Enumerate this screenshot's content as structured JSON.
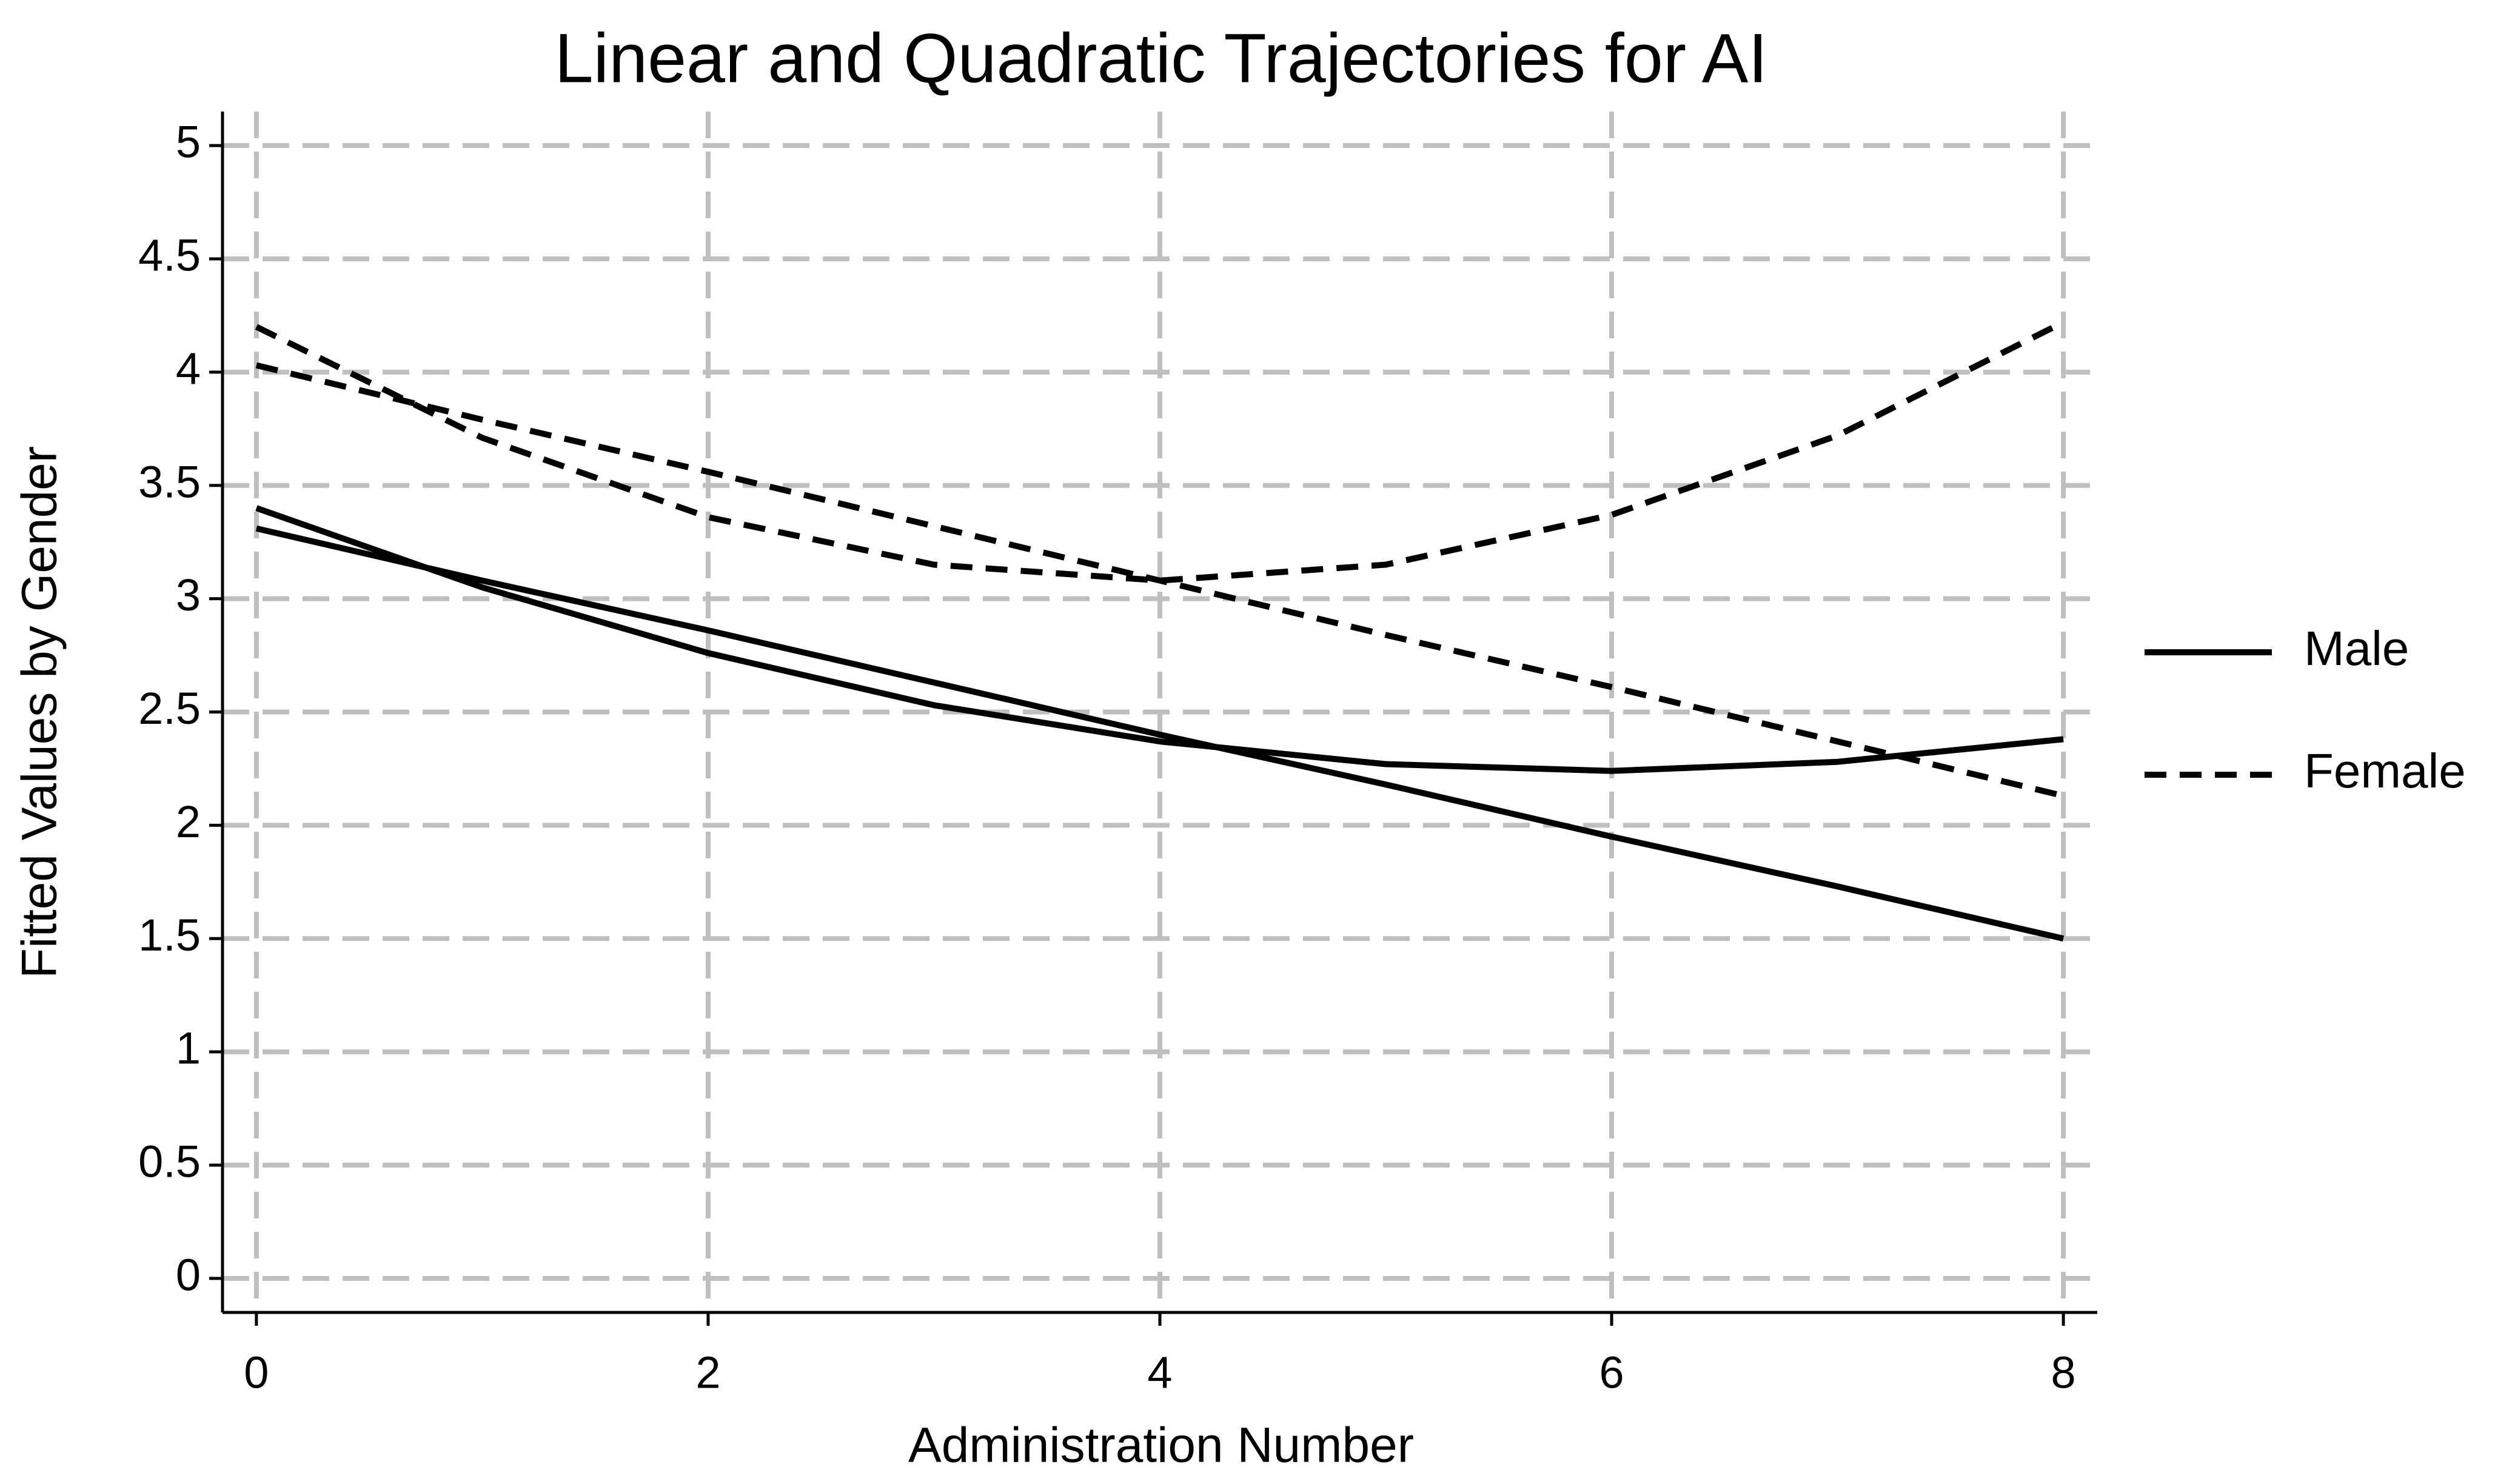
{
  "chart_data": {
    "type": "line",
    "title": "Linear and Quadratic Trajectories for AI",
    "x_label": "Administration Number",
    "y_label": "Fitted Values by Gender",
    "x": [
      0,
      1,
      2,
      3,
      4,
      5,
      6,
      7,
      8
    ],
    "series": [
      {
        "name": "Male",
        "color": "#000000",
        "dash": "solid",
        "linear": [
          3.31,
          3.08,
          2.86,
          2.63,
          2.4,
          2.18,
          1.95,
          1.73,
          1.5
        ],
        "quadratic": [
          3.4,
          3.05,
          2.76,
          2.53,
          2.37,
          2.27,
          2.24,
          2.28,
          2.38
        ]
      },
      {
        "name": "Female",
        "color": "#000000",
        "dash": "dashed",
        "linear": [
          4.03,
          3.79,
          3.56,
          3.32,
          3.08,
          2.84,
          2.61,
          2.37,
          2.13
        ],
        "quadratic": [
          4.2,
          3.71,
          3.36,
          3.15,
          3.08,
          3.15,
          3.37,
          3.72,
          4.22
        ]
      }
    ],
    "xlim": [
      -0.15,
      8.15
    ],
    "xticks": [
      0,
      2,
      4,
      6,
      8
    ],
    "ylim": [
      -0.15,
      5.15
    ],
    "yticks": [
      0,
      0.5,
      1,
      1.5,
      2,
      2.5,
      3,
      3.5,
      4,
      4.5,
      5
    ],
    "grid": true,
    "grid_color": "#bfbfbf",
    "legend": "right"
  }
}
